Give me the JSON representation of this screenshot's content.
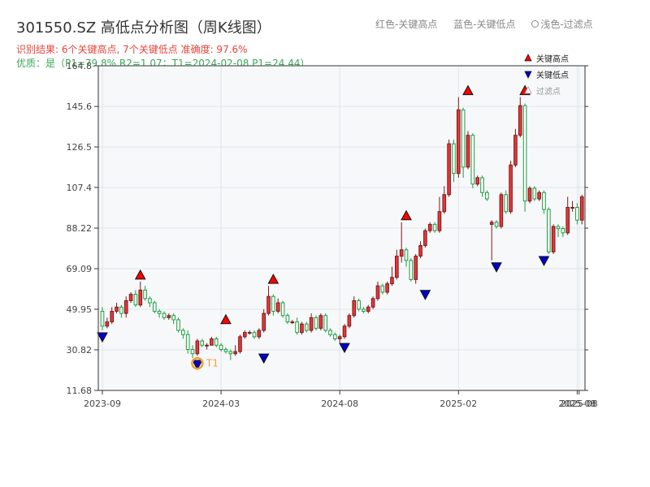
{
  "header": {
    "title": "301550.SZ 高低点分析图（周K线图）",
    "result_line": "识别结果: 6个关键高点, 7个关键低点  准确度: 97.6%",
    "quality_line": "优质：是（P1=79.8%  R2=1.07；T1=2024-02-08 P1=24.44）"
  },
  "top_legend": {
    "red_label": "红色-关键高点",
    "blue_label": "蓝色-关键低点",
    "gray_label": "浅色-过滤点"
  },
  "chart_data": {
    "type": "candlestick",
    "yticks": [
      11.68,
      30.82,
      49.95,
      69.09,
      88.22,
      107.4,
      126.5,
      145.6,
      164.8
    ],
    "ytick_labels": [
      "11.68",
      "30.82",
      "49.95",
      "69.09",
      "88.22",
      "107.4",
      "126.5",
      "145.6",
      "164.8"
    ],
    "ylim": [
      11.68,
      164.8
    ],
    "xtick_labels": [
      "2023-09",
      "2024-03",
      "2024-08",
      "2025-02",
      "2025-08",
      "2025-08"
    ],
    "xtick_index": [
      0,
      25,
      50,
      75,
      100,
      100.4
    ],
    "grid": true,
    "candles": [
      {
        "o": 49,
        "c": 42,
        "h": 51,
        "l": 40
      },
      {
        "o": 42,
        "c": 44,
        "h": 46,
        "l": 41
      },
      {
        "o": 44,
        "c": 49,
        "h": 51,
        "l": 43
      },
      {
        "o": 49,
        "c": 51,
        "h": 53,
        "l": 48
      },
      {
        "o": 51,
        "c": 48,
        "h": 52,
        "l": 46
      },
      {
        "o": 48,
        "c": 54,
        "h": 56,
        "l": 46
      },
      {
        "o": 54,
        "c": 57,
        "h": 58,
        "l": 53
      },
      {
        "o": 57,
        "c": 52,
        "h": 59,
        "l": 51
      },
      {
        "o": 52,
        "c": 59,
        "h": 63,
        "l": 51
      },
      {
        "o": 59,
        "c": 55,
        "h": 61,
        "l": 54
      },
      {
        "o": 55,
        "c": 53,
        "h": 56,
        "l": 51
      },
      {
        "o": 53,
        "c": 49,
        "h": 54,
        "l": 48
      },
      {
        "o": 49,
        "c": 48,
        "h": 50,
        "l": 46
      },
      {
        "o": 48,
        "c": 46,
        "h": 49,
        "l": 45
      },
      {
        "o": 46,
        "c": 47,
        "h": 48,
        "l": 45
      },
      {
        "o": 47,
        "c": 45,
        "h": 48,
        "l": 43
      },
      {
        "o": 45,
        "c": 40,
        "h": 46,
        "l": 39
      },
      {
        "o": 40,
        "c": 38,
        "h": 41,
        "l": 36
      },
      {
        "o": 38,
        "c": 31,
        "h": 40,
        "l": 29
      },
      {
        "o": 31,
        "c": 29,
        "h": 33,
        "l": 27
      },
      {
        "o": 29,
        "c": 35,
        "h": 36,
        "l": 28
      },
      {
        "o": 35,
        "c": 33,
        "h": 36,
        "l": 32
      },
      {
        "o": 33,
        "c": 33,
        "h": 34,
        "l": 31
      },
      {
        "o": 33,
        "c": 36,
        "h": 37,
        "l": 33
      },
      {
        "o": 36,
        "c": 33,
        "h": 37,
        "l": 32
      },
      {
        "o": 33,
        "c": 31,
        "h": 34,
        "l": 30
      },
      {
        "o": 31,
        "c": 30,
        "h": 32,
        "l": 29
      },
      {
        "o": 30,
        "c": 29,
        "h": 31,
        "l": 26
      },
      {
        "o": 29,
        "c": 30,
        "h": 33,
        "l": 28
      },
      {
        "o": 30,
        "c": 37,
        "h": 38,
        "l": 29
      },
      {
        "o": 37,
        "c": 39,
        "h": 40,
        "l": 36
      },
      {
        "o": 39,
        "c": 39,
        "h": 40,
        "l": 38
      },
      {
        "o": 39,
        "c": 37,
        "h": 40,
        "l": 36
      },
      {
        "o": 37,
        "c": 40,
        "h": 41,
        "l": 36
      },
      {
        "o": 40,
        "c": 48,
        "h": 50,
        "l": 39
      },
      {
        "o": 48,
        "c": 56,
        "h": 61,
        "l": 47
      },
      {
        "o": 56,
        "c": 49,
        "h": 57,
        "l": 47
      },
      {
        "o": 49,
        "c": 53,
        "h": 55,
        "l": 48
      },
      {
        "o": 53,
        "c": 47,
        "h": 54,
        "l": 46
      },
      {
        "o": 47,
        "c": 44,
        "h": 48,
        "l": 43
      },
      {
        "o": 44,
        "c": 44,
        "h": 45,
        "l": 43
      },
      {
        "o": 44,
        "c": 39,
        "h": 46,
        "l": 38
      },
      {
        "o": 39,
        "c": 43,
        "h": 44,
        "l": 38
      },
      {
        "o": 43,
        "c": 40,
        "h": 44,
        "l": 39
      },
      {
        "o": 40,
        "c": 46,
        "h": 48,
        "l": 39
      },
      {
        "o": 46,
        "c": 41,
        "h": 47,
        "l": 40
      },
      {
        "o": 41,
        "c": 47,
        "h": 48,
        "l": 40
      },
      {
        "o": 47,
        "c": 40,
        "h": 48,
        "l": 39
      },
      {
        "o": 40,
        "c": 38,
        "h": 41,
        "l": 37
      },
      {
        "o": 38,
        "c": 36,
        "h": 39,
        "l": 35
      },
      {
        "o": 36,
        "c": 37,
        "h": 38,
        "l": 34
      },
      {
        "o": 37,
        "c": 42,
        "h": 43,
        "l": 36
      },
      {
        "o": 42,
        "c": 47,
        "h": 48,
        "l": 41
      },
      {
        "o": 47,
        "c": 54,
        "h": 56,
        "l": 46
      },
      {
        "o": 54,
        "c": 50,
        "h": 55,
        "l": 49
      },
      {
        "o": 50,
        "c": 49,
        "h": 51,
        "l": 48
      },
      {
        "o": 49,
        "c": 51,
        "h": 52,
        "l": 48
      },
      {
        "o": 51,
        "c": 55,
        "h": 56,
        "l": 50
      },
      {
        "o": 55,
        "c": 61,
        "h": 63,
        "l": 54
      },
      {
        "o": 61,
        "c": 58,
        "h": 62,
        "l": 57
      },
      {
        "o": 58,
        "c": 62,
        "h": 63,
        "l": 57
      },
      {
        "o": 62,
        "c": 65,
        "h": 70,
        "l": 61
      },
      {
        "o": 65,
        "c": 75,
        "h": 78,
        "l": 64
      },
      {
        "o": 75,
        "c": 78,
        "h": 91,
        "l": 72
      },
      {
        "o": 78,
        "c": 73,
        "h": 79,
        "l": 70
      },
      {
        "o": 73,
        "c": 64,
        "h": 74,
        "l": 63
      },
      {
        "o": 64,
        "c": 75,
        "h": 76,
        "l": 62
      },
      {
        "o": 75,
        "c": 80,
        "h": 82,
        "l": 74
      },
      {
        "o": 80,
        "c": 87,
        "h": 88,
        "l": 79
      },
      {
        "o": 87,
        "c": 90,
        "h": 91,
        "l": 86
      },
      {
        "o": 90,
        "c": 87,
        "h": 91,
        "l": 86
      },
      {
        "o": 87,
        "c": 96,
        "h": 103,
        "l": 86
      },
      {
        "o": 96,
        "c": 104,
        "h": 108,
        "l": 95
      },
      {
        "o": 104,
        "c": 128,
        "h": 130,
        "l": 103
      },
      {
        "o": 128,
        "c": 114,
        "h": 130,
        "l": 110
      },
      {
        "o": 114,
        "c": 144,
        "h": 150,
        "l": 112
      },
      {
        "o": 144,
        "c": 117,
        "h": 145,
        "l": 112
      },
      {
        "o": 117,
        "c": 132,
        "h": 134,
        "l": 116
      },
      {
        "o": 132,
        "c": 109,
        "h": 133,
        "l": 107
      },
      {
        "o": 109,
        "c": 112,
        "h": 113,
        "l": 108
      },
      {
        "o": 112,
        "c": 105,
        "h": 113,
        "l": 103
      },
      {
        "o": 105,
        "c": 102,
        "h": 106,
        "l": 101
      },
      {
        "o": 90,
        "c": 91,
        "h": 92,
        "l": 73
      },
      {
        "o": 91,
        "c": 89,
        "h": 92,
        "l": 88
      },
      {
        "o": 89,
        "c": 104,
        "h": 105,
        "l": 88
      },
      {
        "o": 104,
        "c": 96,
        "h": 106,
        "l": 95
      },
      {
        "o": 96,
        "c": 118,
        "h": 120,
        "l": 95
      },
      {
        "o": 118,
        "c": 132,
        "h": 135,
        "l": 117
      },
      {
        "o": 132,
        "c": 146,
        "h": 150,
        "l": 131
      },
      {
        "o": 146,
        "c": 101,
        "h": 147,
        "l": 96
      },
      {
        "o": 101,
        "c": 107,
        "h": 108,
        "l": 100
      },
      {
        "o": 107,
        "c": 102,
        "h": 108,
        "l": 101
      },
      {
        "o": 102,
        "c": 105,
        "h": 106,
        "l": 101
      },
      {
        "o": 105,
        "c": 97,
        "h": 106,
        "l": 95
      },
      {
        "o": 97,
        "c": 77,
        "h": 98,
        "l": 76
      },
      {
        "o": 77,
        "c": 89,
        "h": 90,
        "l": 76
      },
      {
        "o": 89,
        "c": 88,
        "h": 90,
        "l": 84
      },
      {
        "o": 88,
        "c": 86,
        "h": 89,
        "l": 84
      },
      {
        "o": 86,
        "c": 98,
        "h": 103,
        "l": 85
      },
      {
        "o": 98,
        "c": 98,
        "h": 101,
        "l": 96
      },
      {
        "o": 98,
        "c": 92,
        "h": 100,
        "l": 90
      },
      {
        "o": 92,
        "c": 103,
        "h": 104,
        "l": 90
      }
    ],
    "key_highs": [
      {
        "i": 8,
        "price": 63
      },
      {
        "i": 26,
        "price": 42
      },
      {
        "i": 36,
        "price": 61
      },
      {
        "i": 64,
        "price": 91
      },
      {
        "i": 77,
        "price": 150
      },
      {
        "i": 89,
        "price": 150
      }
    ],
    "key_lows": [
      {
        "i": 0,
        "price": 40
      },
      {
        "i": 20,
        "price": 27
      },
      {
        "i": 34,
        "price": 30
      },
      {
        "i": 51,
        "price": 35
      },
      {
        "i": 68,
        "price": 60
      },
      {
        "i": 83,
        "price": 73
      },
      {
        "i": 93,
        "price": 76
      }
    ],
    "filtered_point": {
      "i": 20,
      "price": 24.44,
      "label": "T1"
    },
    "legend": [
      {
        "marker": "key-high",
        "label": "关键高点"
      },
      {
        "marker": "key-low",
        "label": "关键低点"
      },
      {
        "marker": "filtered",
        "label": "过滤点"
      }
    ],
    "legend_placement": "top-right",
    "colors": {
      "up": "#e8363a",
      "down": "#1a9e3f",
      "high": "#ff0000",
      "low": "#0000cc",
      "filtered": "#f0a030"
    }
  }
}
